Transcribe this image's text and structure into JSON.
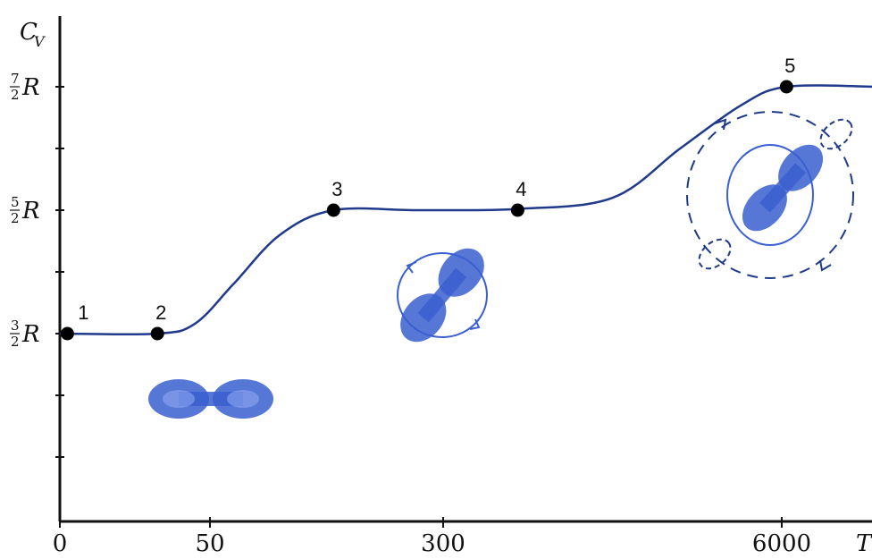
{
  "chart_data": {
    "type": "line",
    "ylabel": "C",
    "ylabel_sub": "V",
    "xlabel": "T",
    "x_ticks": [
      "0",
      "50",
      "300",
      "6000"
    ],
    "y_ticks": [
      {
        "num": "3",
        "den": "2",
        "sym": "R",
        "value": 1.5
      },
      {
        "num": "5",
        "den": "2",
        "sym": "R",
        "value": 2.5
      },
      {
        "num": "7",
        "den": "2",
        "sym": "R",
        "value": 3.5
      }
    ],
    "x_tick_positions": [
      0,
      1,
      2,
      3
    ],
    "ylim": [
      0.0,
      3.7
    ],
    "xlim": [
      0,
      3.4
    ],
    "points": [
      {
        "label": "1",
        "x": 0.05,
        "y": 1.5
      },
      {
        "label": "2",
        "x": 0.65,
        "y": 1.5
      },
      {
        "label": "3",
        "x": 1.53,
        "y": 2.5
      },
      {
        "label": "4",
        "x": 2.22,
        "y": 2.5
      },
      {
        "label": "5",
        "x": 3.02,
        "y": 3.5
      }
    ],
    "curve": [
      [
        0.0,
        1.5
      ],
      [
        0.65,
        1.5
      ],
      [
        0.9,
        1.58
      ],
      [
        1.1,
        1.9
      ],
      [
        1.3,
        2.3
      ],
      [
        1.53,
        2.5
      ],
      [
        1.9,
        2.5
      ],
      [
        2.22,
        2.51
      ],
      [
        2.5,
        2.6
      ],
      [
        2.7,
        3.0
      ],
      [
        2.88,
        3.35
      ],
      [
        3.02,
        3.5
      ],
      [
        3.4,
        3.5
      ]
    ],
    "grid": false,
    "legend": "none",
    "curve_color": "#1f3a8a",
    "molecule_color": "#3a5fd0"
  }
}
